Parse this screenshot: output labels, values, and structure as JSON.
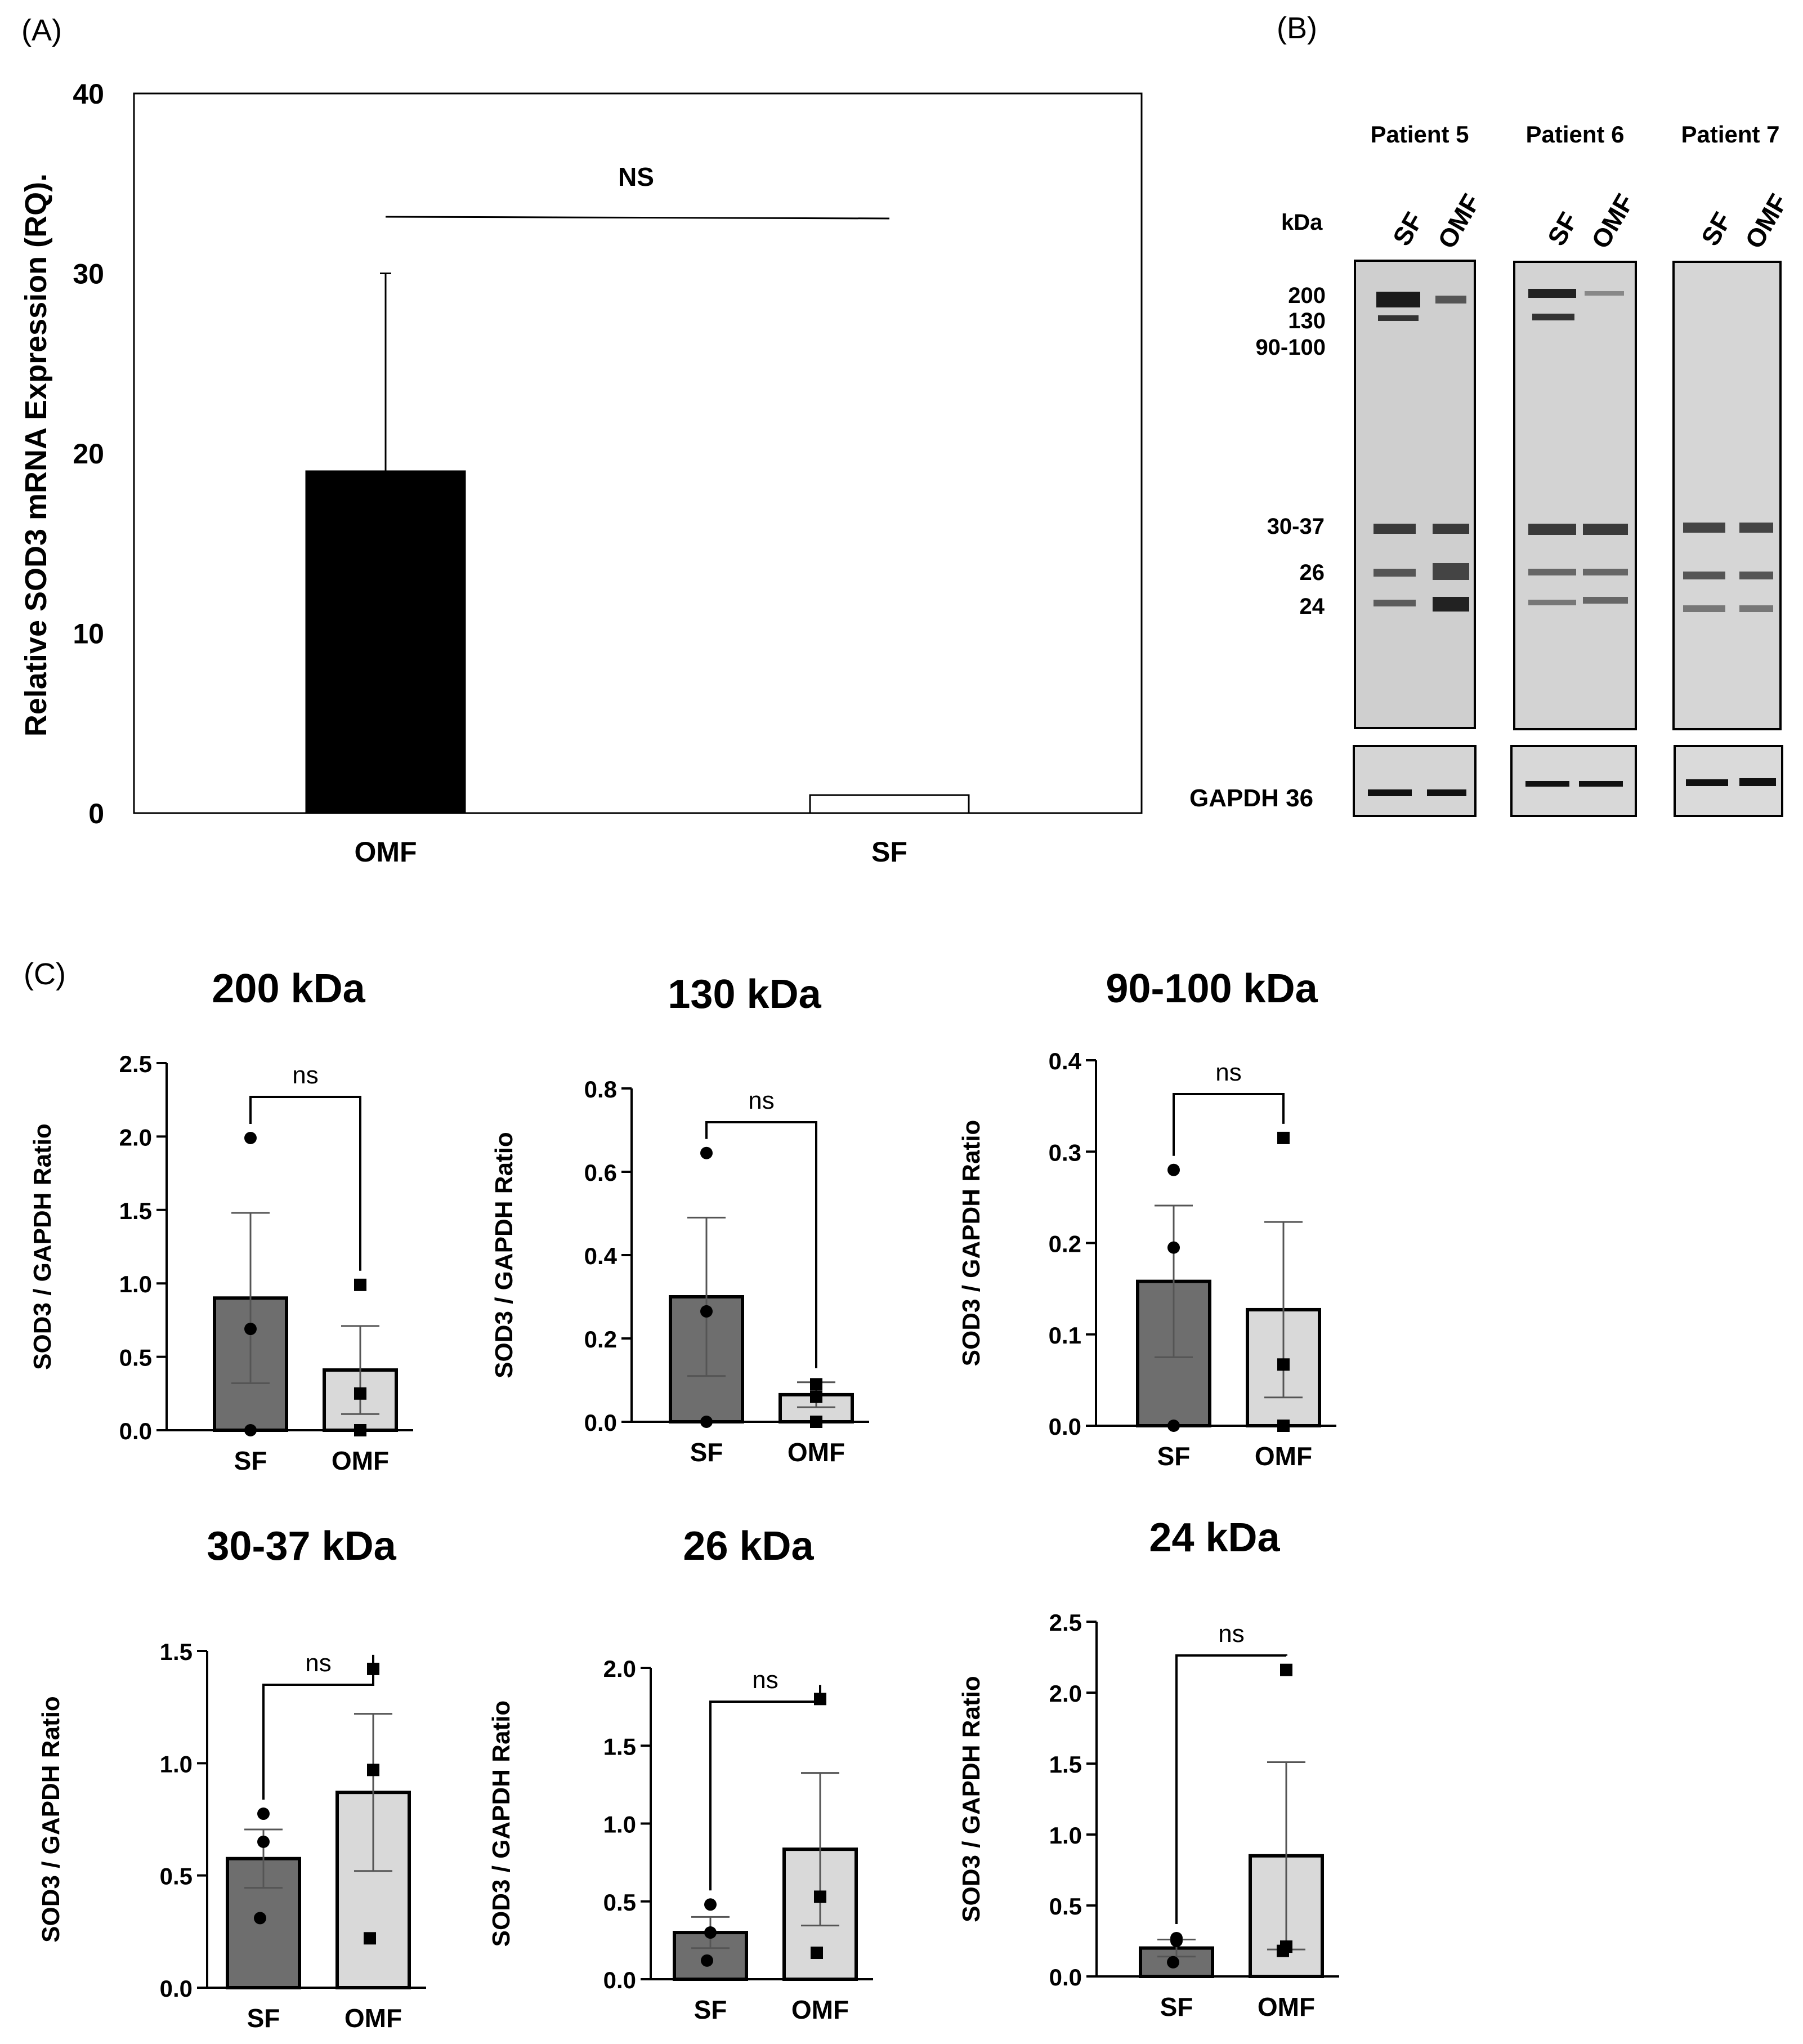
{
  "colors": {
    "black": "#000000",
    "sf_bar": "#6e6e6e",
    "omf_bar": "#d9d9d9",
    "membrane": "#cfcfcf",
    "band": "#2a2a2a",
    "white": "#ffffff"
  },
  "panel_labels": {
    "a": "(A)",
    "b": "(B)",
    "c": "(C)"
  },
  "panel_b": {
    "kda_label": "kDa",
    "patients": [
      "Patient 5",
      "Patient 6",
      "Patient 7"
    ],
    "lanes": [
      "SF",
      "OMF"
    ],
    "markers": [
      "200",
      "130",
      "90-100",
      "30-37",
      "26",
      "24"
    ],
    "loading_control": "GAPDH 36"
  },
  "chart_data": [
    {
      "id": "panel-a",
      "type": "bar",
      "title": "",
      "ylabel": "Relative SOD3 mRNA Expression (RQ).",
      "xlabel": "",
      "categories": [
        "OMF",
        "SF"
      ],
      "values": [
        19,
        1
      ],
      "error_upper": [
        30,
        null
      ],
      "ylim": [
        0,
        40
      ],
      "yticks": [
        0,
        10,
        20,
        30,
        40
      ],
      "ytick_labels": [
        "0",
        "10",
        "20",
        "30",
        "40"
      ],
      "significance": "NS",
      "bar_colors": [
        "#000000",
        "#ffffff"
      ]
    },
    {
      "id": "c-200",
      "type": "bar",
      "title": "200 kDa",
      "ylabel": "SOD3 / GAPDH Ratio",
      "categories": [
        "SF",
        "OMF"
      ],
      "values": [
        0.9,
        0.41
      ],
      "sem": [
        0.58,
        0.3
      ],
      "points": [
        [
          1.99,
          0.69,
          0.0
        ],
        [
          0.99,
          0.25,
          0.0
        ]
      ],
      "ylim": [
        0,
        2.5
      ],
      "yticks": [
        0.0,
        0.5,
        1.0,
        1.5,
        2.0,
        2.5
      ],
      "ytick_labels": [
        "0.0",
        "0.5",
        "1.0",
        "1.5",
        "2.0",
        "2.5"
      ],
      "significance": "ns"
    },
    {
      "id": "c-130",
      "type": "bar",
      "title": "130 kDa",
      "ylabel": "SOD3 / GAPDH Ratio",
      "categories": [
        "SF",
        "OMF"
      ],
      "values": [
        0.3,
        0.065
      ],
      "sem": [
        0.19,
        0.03
      ],
      "points": [
        [
          0.645,
          0.265,
          0.0
        ],
        [
          0.09,
          0.06,
          0.0
        ]
      ],
      "ylim": [
        0,
        0.8
      ],
      "yticks": [
        0.0,
        0.2,
        0.4,
        0.6,
        0.8
      ],
      "ytick_labels": [
        "0.0",
        "0.2",
        "0.4",
        "0.6",
        "0.8"
      ],
      "significance": "ns"
    },
    {
      "id": "c-90-100",
      "type": "bar",
      "title": "90-100 kDa",
      "ylabel": "SOD3 / GAPDH Ratio",
      "categories": [
        "SF",
        "OMF"
      ],
      "values": [
        0.158,
        0.127
      ],
      "sem": [
        0.083,
        0.096
      ],
      "points": [
        [
          0.28,
          0.195,
          0.0
        ],
        [
          0.315,
          0.067,
          0.0
        ]
      ],
      "ylim": [
        0,
        0.4
      ],
      "yticks": [
        0.0,
        0.1,
        0.2,
        0.3,
        0.4
      ],
      "ytick_labels": [
        "0.0",
        "0.1",
        "0.2",
        "0.3",
        "0.4"
      ],
      "significance": "ns"
    },
    {
      "id": "c-30-37",
      "type": "bar",
      "title": "30-37 kDa",
      "ylabel": "SOD3 / GAPDH Ratio",
      "categories": [
        "SF",
        "OMF"
      ],
      "values": [
        0.575,
        0.87
      ],
      "sem": [
        0.13,
        0.35
      ],
      "points": [
        [
          0.775,
          0.65,
          0.31
        ],
        [
          1.42,
          0.97,
          0.22
        ]
      ],
      "ylim": [
        0,
        1.5
      ],
      "yticks": [
        0.0,
        0.5,
        1.0,
        1.5
      ],
      "ytick_labels": [
        "0.0",
        "0.5",
        "1.0",
        "1.5"
      ],
      "significance": "ns"
    },
    {
      "id": "c-26",
      "type": "bar",
      "title": "26 kDa",
      "ylabel": "SOD3 / GAPDH Ratio",
      "categories": [
        "SF",
        "OMF"
      ],
      "values": [
        0.3,
        0.835
      ],
      "sem": [
        0.1,
        0.49
      ],
      "points": [
        [
          0.48,
          0.3,
          0.12
        ],
        [
          1.8,
          0.53,
          0.17
        ]
      ],
      "ylim": [
        0,
        2.0
      ],
      "yticks": [
        0.0,
        0.5,
        1.0,
        1.5,
        2.0
      ],
      "ytick_labels": [
        "0.0",
        "0.5",
        "1.0",
        "1.5",
        "2.0"
      ],
      "significance": "ns"
    },
    {
      "id": "c-24",
      "type": "bar",
      "title": "24 kDa",
      "ylabel": "SOD3 / GAPDH Ratio",
      "categories": [
        "SF",
        "OMF"
      ],
      "values": [
        0.2,
        0.85
      ],
      "sem": [
        0.06,
        0.66
      ],
      "points": [
        [
          0.27,
          0.25,
          0.1
        ],
        [
          2.16,
          0.21,
          0.18
        ]
      ],
      "ylim": [
        0,
        2.5
      ],
      "yticks": [
        0.0,
        0.5,
        1.0,
        1.5,
        2.0,
        2.5
      ],
      "ytick_labels": [
        "0.0",
        "0.5",
        "1.0",
        "1.5",
        "2.0",
        "2.5"
      ],
      "significance": "ns"
    }
  ]
}
